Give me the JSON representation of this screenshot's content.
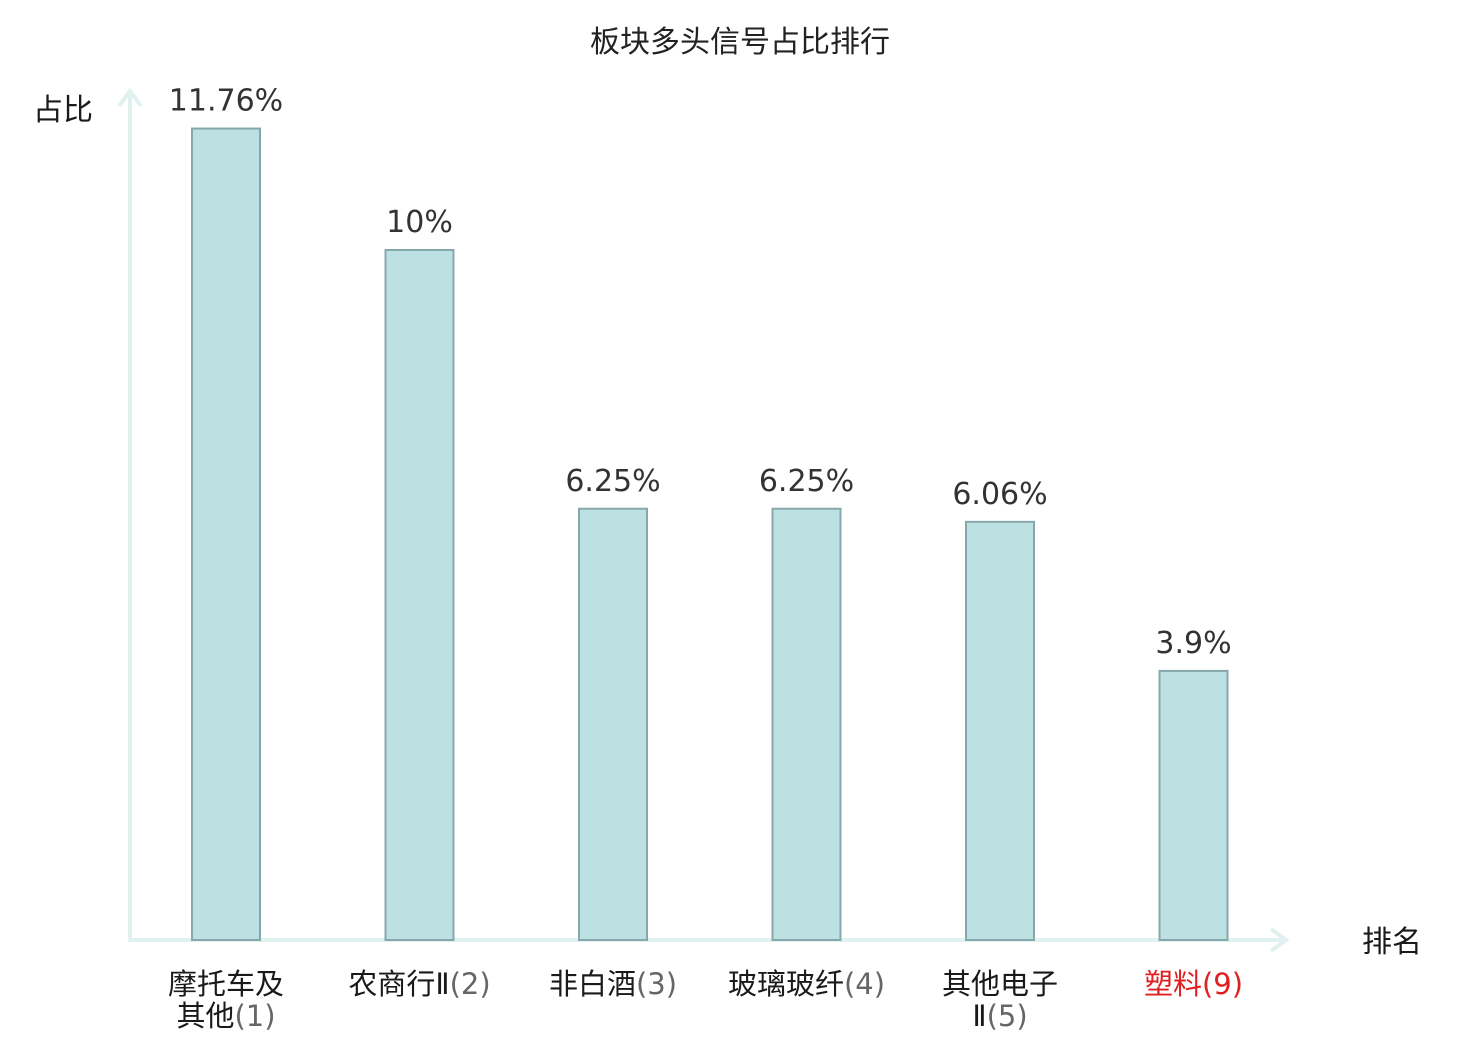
{
  "chart_data": {
    "type": "bar",
    "title": "板块多头信号占比排行",
    "ylabel": "占比",
    "xlabel": "排名",
    "categories": [
      {
        "lines": [
          "摩托车及",
          "其他"
        ],
        "rank": "(1)"
      },
      {
        "lines": [
          "农商行Ⅱ"
        ],
        "rank": "(2)"
      },
      {
        "lines": [
          "非白酒"
        ],
        "rank": "(3)"
      },
      {
        "lines": [
          "玻璃玻纤"
        ],
        "rank": "(4)"
      },
      {
        "lines": [
          "其他电子",
          "Ⅱ"
        ],
        "rank": "(5)"
      },
      {
        "lines": [
          "塑料"
        ],
        "rank": "(9)",
        "highlight": true
      }
    ],
    "values": [
      11.76,
      10,
      6.25,
      6.25,
      6.06,
      3.9
    ],
    "value_labels": [
      "11.76%",
      "10%",
      "6.25%",
      "6.25%",
      "6.06%",
      "3.9%"
    ],
    "ylim": [
      0,
      12.5
    ],
    "grid": false,
    "colors": {
      "bar_fill": "#bde0e3",
      "bar_stroke": "#86a8ab",
      "axis": "#e0f2f0",
      "highlight": "#e02020"
    }
  }
}
